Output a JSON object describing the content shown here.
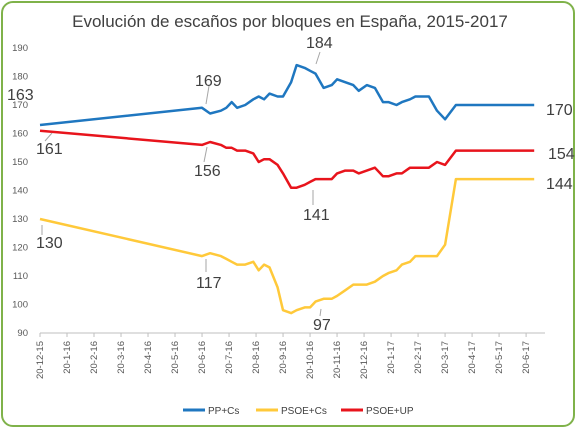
{
  "chart_data": {
    "type": "line",
    "title": "Evolución de escaños por bloques en España, 2015-2017",
    "xlabel": "",
    "ylabel": "",
    "ylim": [
      90,
      190
    ],
    "yticks": [
      "90",
      "100",
      "110",
      "120",
      "130",
      "140",
      "150",
      "160",
      "170",
      "180",
      "190"
    ],
    "xticks": [
      "20-12-15",
      "20-1-16",
      "20-2-16",
      "20-3-16",
      "20-4-16",
      "20-5-16",
      "20-6-16",
      "20-7-16",
      "20-8-16",
      "20-9-16",
      "20-10-16",
      "20-11-16",
      "20-12-16",
      "20-1-17",
      "20-2-17",
      "20-3-17",
      "20-4-17",
      "20-5-17",
      "20-6-17"
    ],
    "grid": false,
    "legend_position": "bottom",
    "colors": {
      "PP+Cs": "#1f77c0",
      "PSOE+Cs": "#ffc93a",
      "PSOE+UP": "#e8141c"
    },
    "series": [
      {
        "name": "PP+Cs",
        "x": [
          0,
          6.0,
          6.3,
          6.7,
          6.9,
          7.1,
          7.3,
          7.6,
          7.9,
          8.1,
          8.3,
          8.5,
          8.8,
          9.0,
          9.3,
          9.5,
          9.8,
          10.0,
          10.2,
          10.5,
          10.8,
          11.0,
          11.3,
          11.6,
          11.8,
          12.1,
          12.4,
          12.7,
          12.9,
          13.2,
          13.4,
          13.7,
          13.9,
          14.1,
          14.4,
          14.7,
          15.0,
          15.4,
          15.8,
          16.2,
          16.6,
          16.8,
          17.2,
          17.5,
          17.9,
          18.3
        ],
        "y": [
          163,
          169,
          167,
          168,
          169,
          171,
          169,
          170,
          172,
          173,
          172,
          174,
          173,
          173,
          178,
          184,
          183,
          182,
          181,
          176,
          177,
          179,
          178,
          177,
          175,
          177,
          176,
          171,
          171,
          170,
          171,
          172,
          173,
          173,
          173,
          168,
          165,
          170,
          170,
          170,
          170,
          170,
          170,
          170,
          170,
          170
        ]
      },
      {
        "name": "PSOE+UP",
        "x": [
          0,
          6.0,
          6.3,
          6.7,
          6.9,
          7.1,
          7.3,
          7.6,
          7.9,
          8.1,
          8.3,
          8.5,
          8.8,
          9.0,
          9.3,
          9.5,
          9.8,
          10.0,
          10.2,
          10.5,
          10.8,
          11.0,
          11.3,
          11.6,
          11.8,
          12.1,
          12.4,
          12.7,
          12.9,
          13.2,
          13.4,
          13.7,
          13.9,
          14.1,
          14.4,
          14.7,
          15.0,
          15.4,
          15.8,
          16.2,
          16.6,
          16.8,
          17.2,
          17.5,
          17.9,
          18.3
        ],
        "y": [
          161,
          156,
          157,
          156,
          155,
          155,
          154,
          154,
          153,
          150,
          151,
          151,
          149,
          146,
          141,
          141,
          142,
          143,
          144,
          144,
          144,
          146,
          147,
          147,
          146,
          147,
          148,
          145,
          145,
          146,
          146,
          148,
          148,
          148,
          148,
          150,
          149,
          154,
          154,
          154,
          154,
          154,
          154,
          154,
          154,
          154
        ]
      },
      {
        "name": "PSOE+Cs",
        "x": [
          0,
          6.0,
          6.3,
          6.7,
          6.9,
          7.1,
          7.3,
          7.6,
          7.9,
          8.1,
          8.3,
          8.5,
          8.8,
          9.0,
          9.3,
          9.5,
          9.8,
          10.0,
          10.2,
          10.5,
          10.8,
          11.0,
          11.3,
          11.6,
          11.8,
          12.1,
          12.4,
          12.7,
          12.9,
          13.2,
          13.4,
          13.7,
          13.9,
          14.1,
          14.4,
          14.7,
          15.0,
          15.4,
          15.8,
          16.2,
          16.6,
          16.8,
          17.2,
          17.5,
          17.9,
          18.3
        ],
        "y": [
          130,
          117,
          118,
          117,
          116,
          115,
          114,
          114,
          115,
          112,
          114,
          113,
          106,
          98,
          97,
          98,
          99,
          99,
          101,
          102,
          102,
          103,
          105,
          107,
          107,
          107,
          108,
          110,
          111,
          112,
          114,
          115,
          117,
          117,
          117,
          117,
          121,
          144,
          144,
          144,
          144,
          144,
          144,
          144,
          144,
          144
        ]
      }
    ],
    "annotations": [
      {
        "series": "PP+Cs",
        "label": "163"
      },
      {
        "series": "PP+Cs",
        "label": "169"
      },
      {
        "series": "PP+Cs",
        "label": "184"
      },
      {
        "series": "PP+Cs",
        "label": "170"
      },
      {
        "series": "PSOE+UP",
        "label": "161"
      },
      {
        "series": "PSOE+UP",
        "label": "156"
      },
      {
        "series": "PSOE+UP",
        "label": "141"
      },
      {
        "series": "PSOE+UP",
        "label": "154"
      },
      {
        "series": "PSOE+Cs",
        "label": "130"
      },
      {
        "series": "PSOE+Cs",
        "label": "117"
      },
      {
        "series": "PSOE+Cs",
        "label": "97"
      },
      {
        "series": "PSOE+Cs",
        "label": "144"
      }
    ]
  }
}
